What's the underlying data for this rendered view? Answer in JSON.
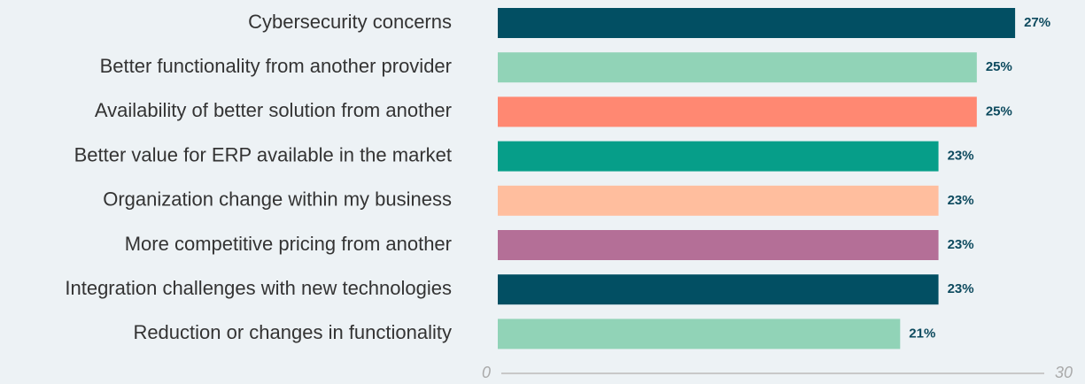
{
  "chart_data": {
    "type": "bar",
    "orientation": "horizontal",
    "categories": [
      "Cybersecurity concerns",
      "Better functionality from another provider",
      "Availability of better solution from another",
      "Better value for ERP available in the market",
      "Organization change within my business",
      "More competitive pricing from another",
      "Integration challenges with new technologies",
      "Reduction or changes in functionality"
    ],
    "values": [
      27,
      25,
      25,
      23,
      23,
      23,
      23,
      21
    ],
    "value_labels": [
      "27%",
      "25%",
      "25%",
      "23%",
      "23%",
      "23%",
      "23%",
      "21%"
    ],
    "colors": [
      "#024f63",
      "#91d3b7",
      "#ff8872",
      "#069e89",
      "#ffbe9e",
      "#b46f97",
      "#024f63",
      "#91d3b7"
    ],
    "xlim": [
      0,
      30
    ],
    "xticks": [
      0,
      30
    ],
    "grid": false
  }
}
